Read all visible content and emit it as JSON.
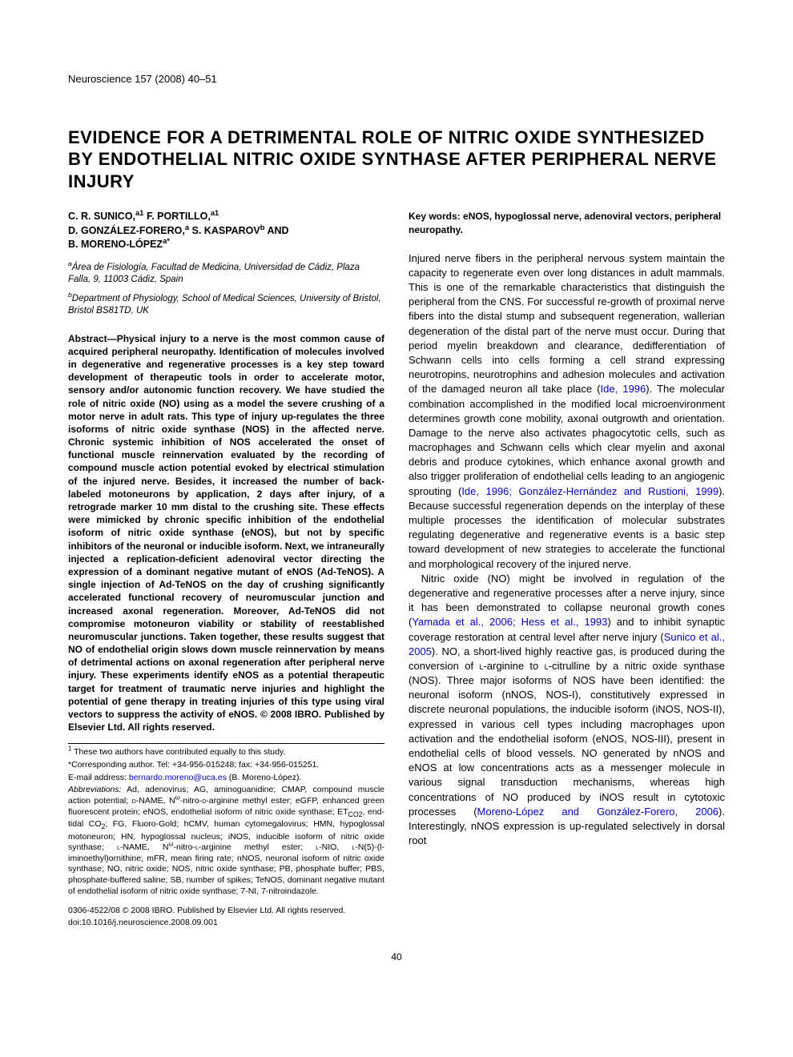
{
  "journal_header": "Neuroscience 157 (2008) 40–51",
  "title": "EVIDENCE FOR A DETRIMENTAL ROLE OF NITRIC OXIDE SYNTHESIZED BY ENDOTHELIAL NITRIC OXIDE SYNTHASE AFTER PERIPHERAL NERVE INJURY",
  "authors_line1": "C. R. SUNICO,",
  "authors_sup1": "a1",
  "authors_line1b": " F. PORTILLO,",
  "authors_sup2": "a1",
  "authors_line2": "D. GONZÁLEZ-FORERO,",
  "authors_sup3": "a",
  "authors_line2b": " S. KASPAROV",
  "authors_sup4": "b",
  "authors_line2c": " AND",
  "authors_line3": "B. MORENO-LÓPEZ",
  "authors_sup5": "a*",
  "affiliation_a_sup": "a",
  "affiliation_a": "Área de Fisiología, Facultad de Medicina, Universidad de Cádiz, Plaza Falla, 9, 11003 Cádiz, Spain",
  "affiliation_b_sup": "b",
  "affiliation_b": "Department of Physiology, School of Medical Sciences, University of Bristol, Bristol BS81TD, UK",
  "abstract_label": "Abstract—",
  "abstract_text": "Physical injury to a nerve is the most common cause of acquired peripheral neuropathy. Identification of molecules involved in degenerative and regenerative processes is a key step toward development of therapeutic tools in order to accelerate motor, sensory and/or autonomic function recovery. We have studied the role of nitric oxide (NO) using as a model the severe crushing of a motor nerve in adult rats. This type of injury up-regulates the three isoforms of nitric oxide synthase (NOS) in the affected nerve. Chronic systemic inhibition of NOS accelerated the onset of functional muscle reinnervation evaluated by the recording of compound muscle action potential evoked by electrical stimulation of the injured nerve. Besides, it increased the number of back-labeled motoneurons by application, 2 days after injury, of a retrograde marker 10 mm distal to the crushing site. These effects were mimicked by chronic specific inhibition of the endothelial isoform of nitric oxide synthase (eNOS), but not by specific inhibitors of the neuronal or inducible isoform. Next, we intraneurally injected a replication-deficient adenoviral vector directing the expression of a dominant negative mutant of eNOS (Ad-TeNOS). A single injection of Ad-TeNOS on the day of crushing significantly accelerated functional recovery of neuromuscular junction and increased axonal regeneration. Moreover, Ad-TeNOS did not compromise motoneuron viability or stability of reestablished neuromuscular junctions. Taken together, these results suggest that NO of endothelial origin slows down muscle reinnervation by means of detrimental actions on axonal regeneration after peripheral nerve injury. These experiments identify eNOS as a potential therapeutic target for treatment of traumatic nerve injuries and highlight the potential of gene therapy in treating injuries of this type using viral vectors to suppress the activity of eNOS. © 2008 IBRO. Published by Elsevier Ltd. All rights reserved.",
  "keywords": "Key words: eNOS, hypoglossal nerve, adenoviral vectors, peripheral neuropathy.",
  "para1_a": "Injured nerve fibers in the peripheral nervous system maintain the capacity to regenerate even over long distances in adult mammals. This is one of the remarkable characteristics that distinguish the peripheral from the CNS. For successful re-growth of proximal nerve fibers into the distal stump and subsequent regeneration, wallerian degeneration of the distal part of the nerve must occur. During that period myelin breakdown and clearance, dedifferentiation of Schwann cells into cells forming a cell strand expressing neurotropins, neurotrophins and adhesion molecules and activation of the damaged neuron all take place (",
  "para1_link1": "Ide, 1996",
  "para1_b": "). The molecular combination accomplished in the modified local microenvironment determines growth cone mobility, axonal outgrowth and orientation. Damage to the nerve also activates phagocytotic cells, such as macrophages and Schwann cells which clear myelin and axonal debris and produce cytokines, which enhance axonal growth and also trigger proliferation of endothelial cells leading to an angiogenic sprouting (",
  "para1_link2": "Ide, 1996; González-Hernández and Rustioni, 1999",
  "para1_c": "). Because successful regeneration depends on the interplay of these multiple processes the identification of molecular substrates regulating degenerative and regenerative events is a basic step toward development of new strategies to accelerate the functional and morphological recovery of the injured nerve.",
  "para2_a": "Nitric oxide (NO) might be involved in regulation of the degenerative and regenerative processes after a nerve injury, since it has been demonstrated to collapse neuronal growth cones (",
  "para2_link1": "Yamada et al., 2006; Hess et al., 1993",
  "para2_b": ") and to inhibit synaptic coverage restoration at central level after nerve injury (",
  "para2_link2": "Sunico et al., 2005",
  "para2_c": "). NO, a short-lived highly reactive gas, is produced during the conversion of ",
  "para2_sc1": "l",
  "para2_d": "-arginine to ",
  "para2_sc2": "l",
  "para2_e": "-citrulline by a nitric oxide synthase (NOS). Three major isoforms of NOS have been identified: the neuronal isoform (nNOS, NOS-I), constitutively expressed in discrete neuronal populations, the inducible isoform (iNOS, NOS-II), expressed in various cell types including macrophages upon activation and the endothelial isoform (eNOS, NOS-III), present in endothelial cells of blood vessels. NO generated by nNOS and eNOS at low concentrations acts as a messenger molecule in various signal transduction mechanisms, whereas high concentrations of NO produced by iNOS result in cytotoxic processes (",
  "para2_link3": "Moreno-López and González-Forero, 2006",
  "para2_f": "). Interestingly, nNOS expression is up-regulated selectively in dorsal root",
  "footnote1_sup": "1",
  "footnote1": " These two authors have contributed equally to this study.",
  "footnote2": "*Corresponding author. Tel: +34-956-015248; fax: +34-956-015251.",
  "footnote3a": "E-mail address: ",
  "footnote3_link": "bernardo.moreno@uca.es",
  "footnote3b": " (B. Moreno-López).",
  "abbrev_label": "Abbreviations:",
  "abbrev_text": " Ad, adenovirus; AG, aminoguanidine; CMAP, compound muscle action potential; ",
  "abbrev_sc1": "d",
  "abbrev_text2": "-NAME, N",
  "abbrev_sup_w1": "ω",
  "abbrev_text3": "-nitro-",
  "abbrev_sc2": "d",
  "abbrev_text4": "-arginine methyl ester; eGFP, enhanced green fluorescent protein; eNOS, endothelial isoform of nitric oxide synthase; ET",
  "abbrev_sub_co2": "CO2",
  "abbrev_text5": ", end-tidal CO",
  "abbrev_sub_2": "2",
  "abbrev_text6": "; FG, Fluoro-Gold; hCMV, human cytomegalovirus; HMN, hypoglossal motoneuron; HN, hypoglossal nucleus; iNOS, inducible isoform of nitric oxide synthase; ",
  "abbrev_sc3": "l",
  "abbrev_text7": "-NAME, N",
  "abbrev_sup_w2": "ω",
  "abbrev_text8": "-nitro-",
  "abbrev_sc4": "l",
  "abbrev_text9": "-arginine methyl ester; ",
  "abbrev_sc5": "l",
  "abbrev_text10": "-NIO, ",
  "abbrev_sc6": "l",
  "abbrev_text11": "-N(5)-(l-iminoethyl)ornithine; mFR, mean firing rate; nNOS, neuronal isoform of nitric oxide synthase; NO, nitric oxide; NOS, nitric oxide synthase; PB, phosphate buffer; PBS, phosphate-buffered saline; SB, number of spikes; TeNOS, dominant negative mutant of endothelial isoform of nitric oxide synthase; 7-NI, 7-nitroindazole.",
  "copyright1": "0306-4522/08 © 2008 IBRO. Published by Elsevier Ltd. All rights reserved.",
  "copyright2": "doi:10.1016/j.neuroscience.2008.09.001",
  "page_number": "40",
  "colors": {
    "text": "#000000",
    "link": "#0000d0",
    "background": "#ffffff"
  },
  "typography": {
    "body_font": "Arial, Helvetica, sans-serif",
    "body_size_pt": 9.5,
    "title_size_pt": 16,
    "footnote_size_pt": 8
  }
}
